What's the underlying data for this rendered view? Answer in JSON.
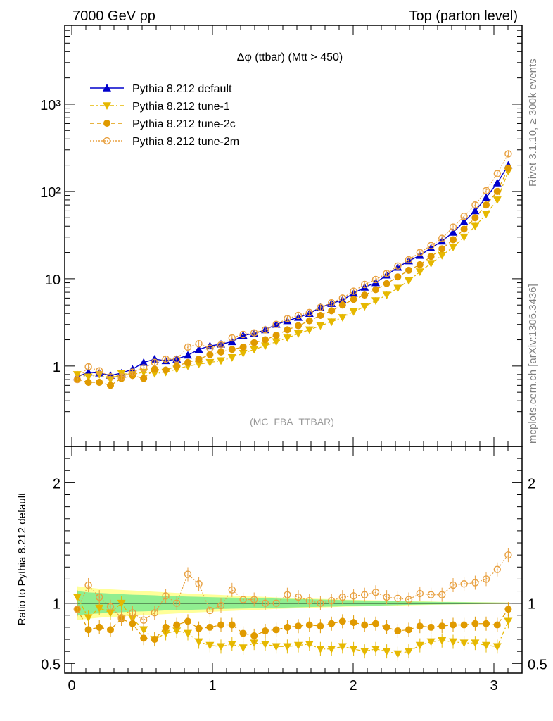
{
  "header": {
    "left": "7000 GeV pp",
    "right": "Top (parton level)"
  },
  "side_labels": {
    "rivet": "Rivet 3.1.10, ≥ 300k events",
    "mcplots": "mcplots.cern.ch [arXiv:1306.3436]"
  },
  "colors": {
    "default": "#0000cc",
    "tune1": "#e6b800",
    "tune2c": "#e09a00",
    "tune2m": "#e8a040",
    "band_inner": "#90ee90",
    "band_outer": "#ffff99"
  },
  "chart_data": [
    {
      "type": "line",
      "title": "Δφ (ttbar) (Mtt > 450)",
      "subtitle": "(MC_FBA_TTBAR)",
      "yscale": "log",
      "xlim": [
        -0.05,
        3.2
      ],
      "ylim": [
        0.12,
        8000
      ],
      "y_tick_labels": [
        "1",
        "10",
        "10²",
        "10³"
      ],
      "legend_position": "top-left",
      "x": [
        0.039,
        0.118,
        0.196,
        0.275,
        0.353,
        0.432,
        0.511,
        0.589,
        0.668,
        0.746,
        0.825,
        0.903,
        0.982,
        1.06,
        1.139,
        1.218,
        1.296,
        1.375,
        1.453,
        1.532,
        1.61,
        1.689,
        1.767,
        1.846,
        1.924,
        2.003,
        2.081,
        2.16,
        2.238,
        2.317,
        2.395,
        2.474,
        2.553,
        2.631,
        2.71,
        2.788,
        2.867,
        2.945,
        3.024,
        3.102
      ],
      "series": [
        {
          "name": "Pythia 8.212 default",
          "key": "default",
          "marker": "triangle-up",
          "values": [
            0.75,
            0.85,
            0.83,
            0.78,
            0.83,
            0.92,
            1.1,
            1.2,
            1.15,
            1.2,
            1.33,
            1.55,
            1.7,
            1.78,
            1.9,
            2.25,
            2.35,
            2.6,
            3.0,
            3.3,
            3.6,
            4.0,
            4.7,
            5.2,
            5.7,
            6.8,
            8.0,
            9.0,
            11.0,
            13.5,
            16.0,
            18.5,
            22.5,
            27.0,
            34.0,
            45.0,
            60.0,
            85.0,
            125.0,
            200.0
          ]
        },
        {
          "name": "Pythia 8.212 tune-1",
          "key": "tune1",
          "marker": "triangle-down",
          "values": [
            0.8,
            0.75,
            0.8,
            0.7,
            0.82,
            0.8,
            0.85,
            0.82,
            0.85,
            0.92,
            1.0,
            1.05,
            1.1,
            1.15,
            1.25,
            1.4,
            1.55,
            1.7,
            1.9,
            2.1,
            2.35,
            2.6,
            2.9,
            3.2,
            3.6,
            4.2,
            4.8,
            5.6,
            6.5,
            7.8,
            9.5,
            12.0,
            15.0,
            18.5,
            23.0,
            30.0,
            40.0,
            55.0,
            80.0,
            170.0
          ]
        },
        {
          "name": "Pythia 8.212 tune-2c",
          "key": "tune2c",
          "marker": "circle",
          "values": [
            0.7,
            0.65,
            0.65,
            0.6,
            0.72,
            0.78,
            0.72,
            0.92,
            0.9,
            1.0,
            1.1,
            1.2,
            1.35,
            1.45,
            1.55,
            1.65,
            1.85,
            2.0,
            2.25,
            2.6,
            2.9,
            3.3,
            3.8,
            4.3,
            5.0,
            5.8,
            6.5,
            7.5,
            8.8,
            10.5,
            12.5,
            14.5,
            18.0,
            22.0,
            28.0,
            37.0,
            50.0,
            70.0,
            100.0,
            185.0
          ]
        },
        {
          "name": "Pythia 8.212 tune-2m",
          "key": "tune2m",
          "marker": "circle-open",
          "values": [
            0.7,
            0.98,
            0.88,
            0.75,
            0.75,
            0.85,
            0.95,
            1.1,
            1.2,
            1.2,
            1.65,
            1.8,
            1.6,
            1.75,
            2.1,
            2.3,
            2.4,
            2.6,
            3.0,
            3.5,
            3.8,
            4.1,
            4.7,
            5.3,
            6.0,
            7.2,
            8.6,
            9.8,
            11.5,
            14.0,
            16.5,
            20.0,
            24.0,
            29.0,
            39.0,
            52.0,
            70.0,
            102.0,
            160.0,
            270.0
          ]
        }
      ]
    },
    {
      "type": "line",
      "ylabel": "Ratio to Pythia 8.212 default",
      "xlim": [
        -0.05,
        3.2
      ],
      "ylim": [
        0.42,
        2.3
      ],
      "y_tick_labels": [
        "0.5",
        "1",
        "2"
      ],
      "x_tick_labels": [
        "0",
        "1",
        "2",
        "3"
      ],
      "reference": 1.0,
      "band_inner": [
        0.1,
        0.09,
        0.085,
        0.08,
        0.075,
        0.07,
        0.068,
        0.065,
        0.06,
        0.058,
        0.055,
        0.053,
        0.05,
        0.048,
        0.046,
        0.044,
        0.042,
        0.04,
        0.038,
        0.036,
        0.034,
        0.032,
        0.03,
        0.028,
        0.026,
        0.024,
        0.022,
        0.02,
        0.018,
        0.016,
        0.014,
        0.012,
        0.011,
        0.01,
        0.009,
        0.008,
        0.007,
        0.006,
        0.005,
        0.004
      ],
      "band_outer": [
        0.14,
        0.13,
        0.12,
        0.115,
        0.11,
        0.105,
        0.1,
        0.095,
        0.09,
        0.085,
        0.08,
        0.076,
        0.072,
        0.068,
        0.064,
        0.06,
        0.056,
        0.052,
        0.048,
        0.045,
        0.042,
        0.039,
        0.036,
        0.033,
        0.03,
        0.028,
        0.026,
        0.024,
        0.022,
        0.02,
        0.018,
        0.016,
        0.014,
        0.012,
        0.011,
        0.01,
        0.009,
        0.008,
        0.007,
        0.006
      ],
      "series": [
        {
          "key": "tune1",
          "marker": "triangle-down",
          "values": [
            1.05,
            0.88,
            0.96,
            0.92,
            1.0,
            0.87,
            0.78,
            0.7,
            0.75,
            0.77,
            0.75,
            0.68,
            0.65,
            0.64,
            0.66,
            0.63,
            0.67,
            0.66,
            0.64,
            0.64,
            0.65,
            0.66,
            0.62,
            0.62,
            0.64,
            0.62,
            0.6,
            0.62,
            0.6,
            0.58,
            0.6,
            0.65,
            0.68,
            0.69,
            0.68,
            0.67,
            0.67,
            0.65,
            0.64,
            0.85
          ]
        },
        {
          "key": "tune2c",
          "marker": "circle",
          "values": [
            0.95,
            0.78,
            0.8,
            0.78,
            0.87,
            0.83,
            0.71,
            0.7,
            0.8,
            0.82,
            0.85,
            0.79,
            0.8,
            0.82,
            0.82,
            0.75,
            0.73,
            0.77,
            0.78,
            0.8,
            0.81,
            0.82,
            0.81,
            0.83,
            0.85,
            0.84,
            0.82,
            0.83,
            0.8,
            0.77,
            0.78,
            0.81,
            0.8,
            0.81,
            0.82,
            0.82,
            0.83,
            0.83,
            0.82,
            0.95
          ]
        },
        {
          "key": "tune2m",
          "marker": "circle-open",
          "values": [
            0.95,
            1.15,
            1.05,
            0.97,
            0.88,
            0.92,
            0.86,
            0.92,
            1.06,
            1.0,
            1.24,
            1.16,
            0.94,
            0.98,
            1.11,
            1.03,
            1.03,
            1.0,
            1.0,
            1.07,
            1.05,
            1.02,
            1.0,
            1.02,
            1.05,
            1.06,
            1.07,
            1.09,
            1.05,
            1.04,
            1.03,
            1.08,
            1.07,
            1.07,
            1.15,
            1.16,
            1.17,
            1.2,
            1.28,
            1.4
          ]
        }
      ]
    }
  ]
}
